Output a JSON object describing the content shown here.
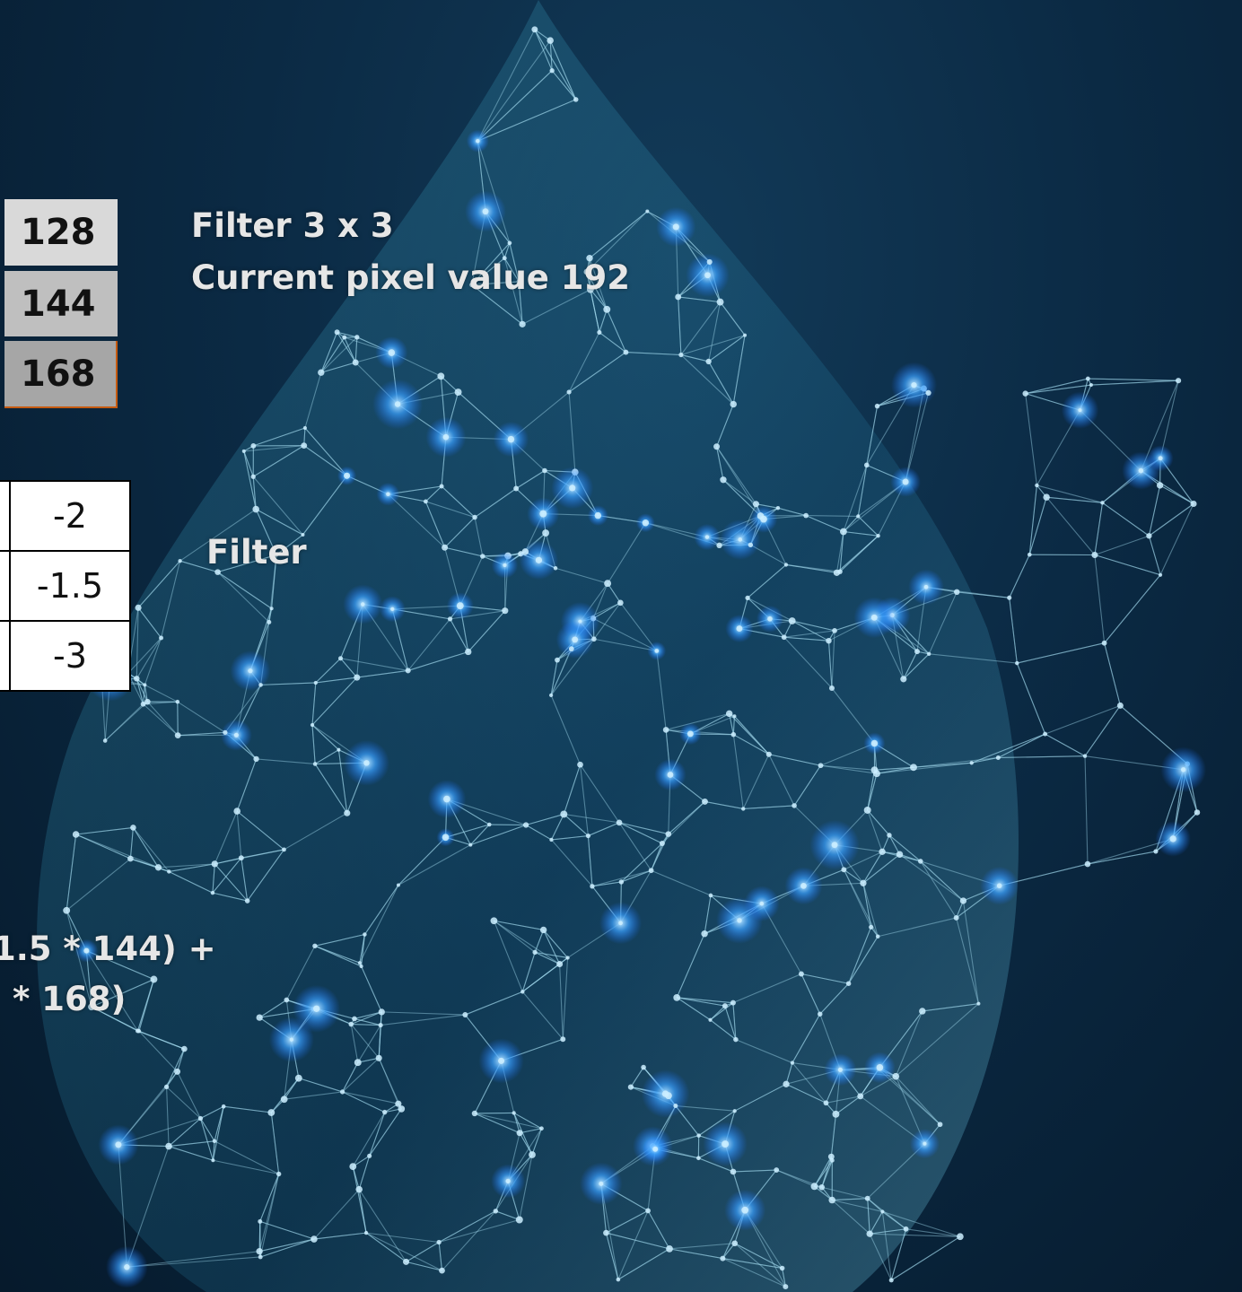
{
  "pixel_table": {
    "rows": [
      "128",
      "144",
      "168"
    ]
  },
  "filter_table": {
    "rows": [
      "-2",
      "-1.5",
      "-3"
    ]
  },
  "labels": {
    "filter_size": "Filter 3 x 3",
    "current_pixel": "Current pixel value 192",
    "filter": "Filter"
  },
  "formula": {
    "line1": "1.5 * 144) +",
    "line2": "* 168)"
  }
}
